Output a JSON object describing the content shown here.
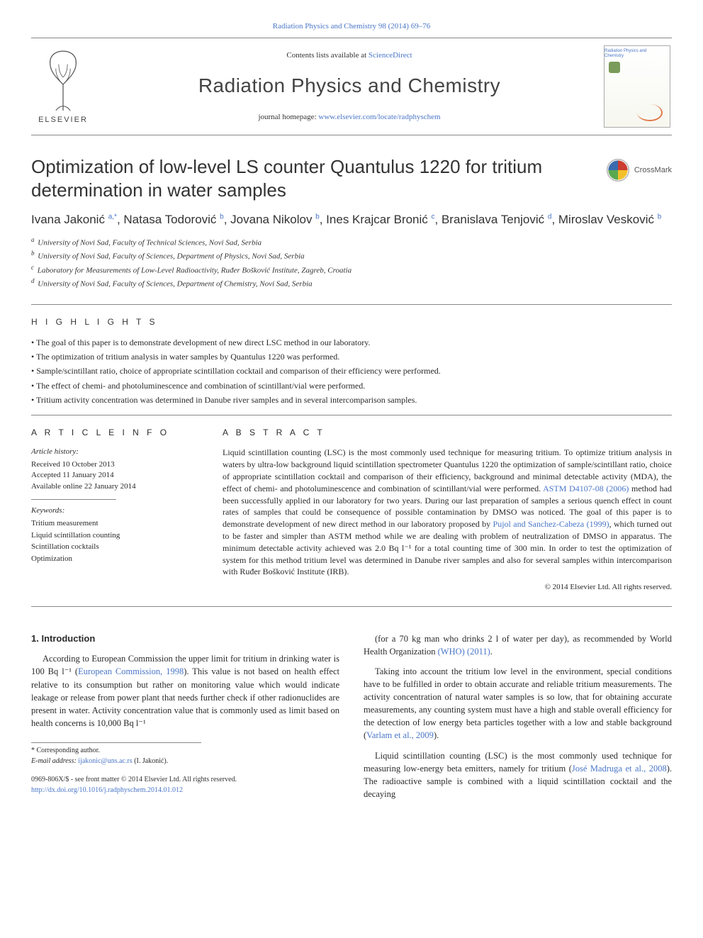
{
  "journal": {
    "citation": "Radiation Physics and Chemistry 98 (2014) 69–76",
    "contents_prefix": "Contents lists available at ",
    "contents_link": "ScienceDirect",
    "name": "Radiation Physics and Chemistry",
    "homepage_prefix": "journal homepage: ",
    "homepage_link": "www.elsevier.com/locate/radphyschem",
    "publisher": "ELSEVIER",
    "cover_title": "Radiation Physics and Chemistry"
  },
  "crossmark": "CrossMark",
  "article": {
    "title": "Optimization of low-level LS counter Quantulus 1220 for tritium determination in water samples",
    "authors_html": "Ivana Jakonić <sup><a>a</a>,<a>*</a></sup>, Natasa Todorović <sup><a>b</a></sup>, Jovana Nikolov <sup><a>b</a></sup>, Ines Krajcar Bronić <sup><a>c</a></sup>, Branislava Tenjović <sup><a>d</a></sup>, Miroslav Vesković <sup><a>b</a></sup>",
    "affiliations": [
      {
        "sup": "a",
        "text": "University of Novi Sad, Faculty of Technical Sciences, Novi Sad, Serbia"
      },
      {
        "sup": "b",
        "text": "University of Novi Sad, Faculty of Sciences, Department of Physics, Novi Sad, Serbia"
      },
      {
        "sup": "c",
        "text": "Laboratory for Measurements of Low-Level Radioactivity, Ruđer Bošković Institute, Zagreb, Croatia"
      },
      {
        "sup": "d",
        "text": "University of Novi Sad, Faculty of Sciences, Department of Chemistry, Novi Sad, Serbia"
      }
    ]
  },
  "highlights": {
    "label": "H I G H L I G H T S",
    "items": [
      "The goal of this paper is to demonstrate development of new direct LSC method in our laboratory.",
      "The optimization of tritium analysis in water samples by Quantulus 1220 was performed.",
      "Sample/scintillant ratio, choice of appropriate scintillation cocktail and comparison of their efficiency were performed.",
      "The effect of chemi- and photoluminescence and combination of scintillant/vial were performed.",
      "Tritium activity concentration was determined in Danube river samples and in several intercomparison samples."
    ]
  },
  "article_info": {
    "label": "A R T I C L E   I N F O",
    "history_label": "Article history:",
    "received": "Received 10 October 2013",
    "accepted": "Accepted 11 January 2014",
    "online": "Available online 22 January 2014",
    "keywords_label": "Keywords:",
    "keywords": [
      "Tritium measurement",
      "Liquid scintillation counting",
      "Scintillation cocktails",
      "Optimization"
    ]
  },
  "abstract": {
    "label": "A B S T R A C T",
    "text_pre": "Liquid scintillation counting (LSC) is the most commonly used technique for measuring tritium. To optimize tritium analysis in waters by ultra-low background liquid scintillation spectrometer Quantulus 1220 the optimization of sample/scintillant ratio, choice of appropriate scintillation cocktail and comparison of their efficiency, background and minimal detectable activity (MDA), the effect of chemi- and photoluminescence and combination of scintillant/vial were performed. ",
    "link1": "ASTM D4107-08 (2006)",
    "text_mid": " method had been successfully applied in our laboratory for two years. During our last preparation of samples a serious quench effect in count rates of samples that could be consequence of possible contamination by DMSO was noticed. The goal of this paper is to demonstrate development of new direct method in our laboratory proposed by ",
    "link2": "Pujol and Sanchez-Cabeza (1999)",
    "text_post": ", which turned out to be faster and simpler than ASTM method while we are dealing with problem of neutralization of DMSO in apparatus. The minimum detectable activity achieved was 2.0 Bq l⁻¹ for a total counting time of 300 min. In order to test the optimization of system for this method tritium level was determined in Danube river samples and also for several samples within intercomparison with Ruđer Bošković Institute (IRB).",
    "copyright": "© 2014 Elsevier Ltd. All rights reserved."
  },
  "body": {
    "h1": "1.  Introduction",
    "p1_pre": "According to European Commission the upper limit for tritium in drinking water is 100 Bq l⁻¹ (",
    "p1_link": "European Commission, 1998",
    "p1_post": "). This value is not based on health effect relative to its consumption but rather on monitoring value which would indicate leakage or release from power plant that needs further check if other radionuclides are present in water. Activity concentration value that is commonly used as limit based on health concerns is 10,000 Bq l⁻¹",
    "p2_pre": "(for a 70 kg man who drinks 2 l of water per day), as recommended by World Health Organization ",
    "p2_link": "(WHO) (2011)",
    "p2_post": ".",
    "p3_pre": "Taking into account the tritium low level in the environment, special conditions have to be fulfilled in order to obtain accurate and reliable tritium measurements. The activity concentration of natural water samples is so low, that for obtaining accurate measurements, any counting system must have a high and stable overall efficiency for the detection of low energy beta particles together with a low and stable background (",
    "p3_link": "Varlam et al., 2009",
    "p3_post": ").",
    "p4_pre": "Liquid scintillation counting (LSC) is the most commonly used technique for measuring low-energy beta emitters, namely for tritium (",
    "p4_link": "José Madruga et al., 2008",
    "p4_post": "). The radioactive sample is combined with a liquid scintillation cocktail and the decaying"
  },
  "footnote": {
    "corr": "* Corresponding author.",
    "email_label": "E-mail address: ",
    "email": "ijakonic@uns.ac.rs",
    "email_who": " (I. Jakonić)."
  },
  "footer": {
    "line1": "0969-806X/$ - see front matter © 2014 Elsevier Ltd. All rights reserved.",
    "doi": "http://dx.doi.org/10.1016/j.radphyschem.2014.01.012"
  },
  "colors": {
    "link": "#4a76c7",
    "rule": "#888888",
    "text": "#2a2a2a",
    "elsevier_orange": "#e98b2f",
    "crossmark_red": "#cc3b2f",
    "crossmark_yellow": "#f2c029",
    "crossmark_blue": "#3a6bb0",
    "crossmark_green": "#5aa84f"
  }
}
